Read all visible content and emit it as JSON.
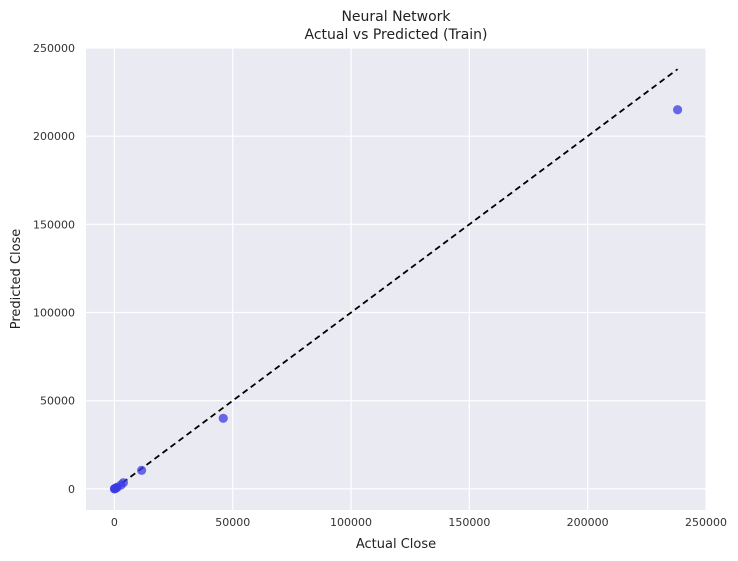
{
  "chart_data": {
    "type": "scatter",
    "title": "Neural Network",
    "subtitle": "Actual vs Predicted (Train)",
    "xlabel": "Actual Close",
    "ylabel": "Predicted Close",
    "xlim": [
      -12000,
      250000
    ],
    "ylim": [
      -12000,
      250000
    ],
    "xticks": [
      0,
      50000,
      100000,
      150000,
      200000,
      250000
    ],
    "yticks": [
      0,
      50000,
      100000,
      150000,
      200000,
      250000
    ],
    "grid": true,
    "points": [
      {
        "x": 0,
        "y": 0
      },
      {
        "x": 150,
        "y": 100
      },
      {
        "x": 400,
        "y": 300
      },
      {
        "x": 700,
        "y": 500
      },
      {
        "x": 1200,
        "y": 900
      },
      {
        "x": 2800,
        "y": 2200
      },
      {
        "x": 3800,
        "y": 3500
      },
      {
        "x": 11500,
        "y": 10500
      },
      {
        "x": 46000,
        "y": 40000
      },
      {
        "x": 238000,
        "y": 215000
      }
    ],
    "reference_line": {
      "x": [
        0,
        238000
      ],
      "y": [
        0,
        238000
      ],
      "style": "dashed"
    },
    "colors": {
      "background": "#eaeaf2",
      "grid": "#ffffff",
      "points": "#3a3ae6",
      "reference_line": "#000000"
    }
  }
}
